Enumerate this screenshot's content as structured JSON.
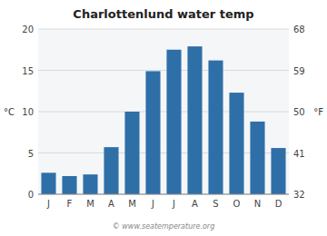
{
  "chart_data": {
    "type": "bar",
    "title": "Charlottenlund water temp",
    "categories": [
      "J",
      "F",
      "M",
      "A",
      "M",
      "J",
      "J",
      "A",
      "S",
      "O",
      "N",
      "D"
    ],
    "values": [
      2.6,
      2.2,
      2.4,
      5.7,
      10.0,
      14.9,
      17.5,
      17.9,
      16.2,
      12.3,
      8.8,
      5.6
    ],
    "color": "#2f6fa8",
    "ylim": [
      0,
      20
    ],
    "yticks": [
      0,
      5,
      10,
      15,
      20
    ],
    "y2lim": [
      32,
      68
    ],
    "y2ticks": [
      32,
      41,
      50,
      59,
      68
    ],
    "ylabel": "°C",
    "y2label": "°F",
    "grid": true,
    "annotations": [
      "© www.seatemperature.org"
    ]
  }
}
